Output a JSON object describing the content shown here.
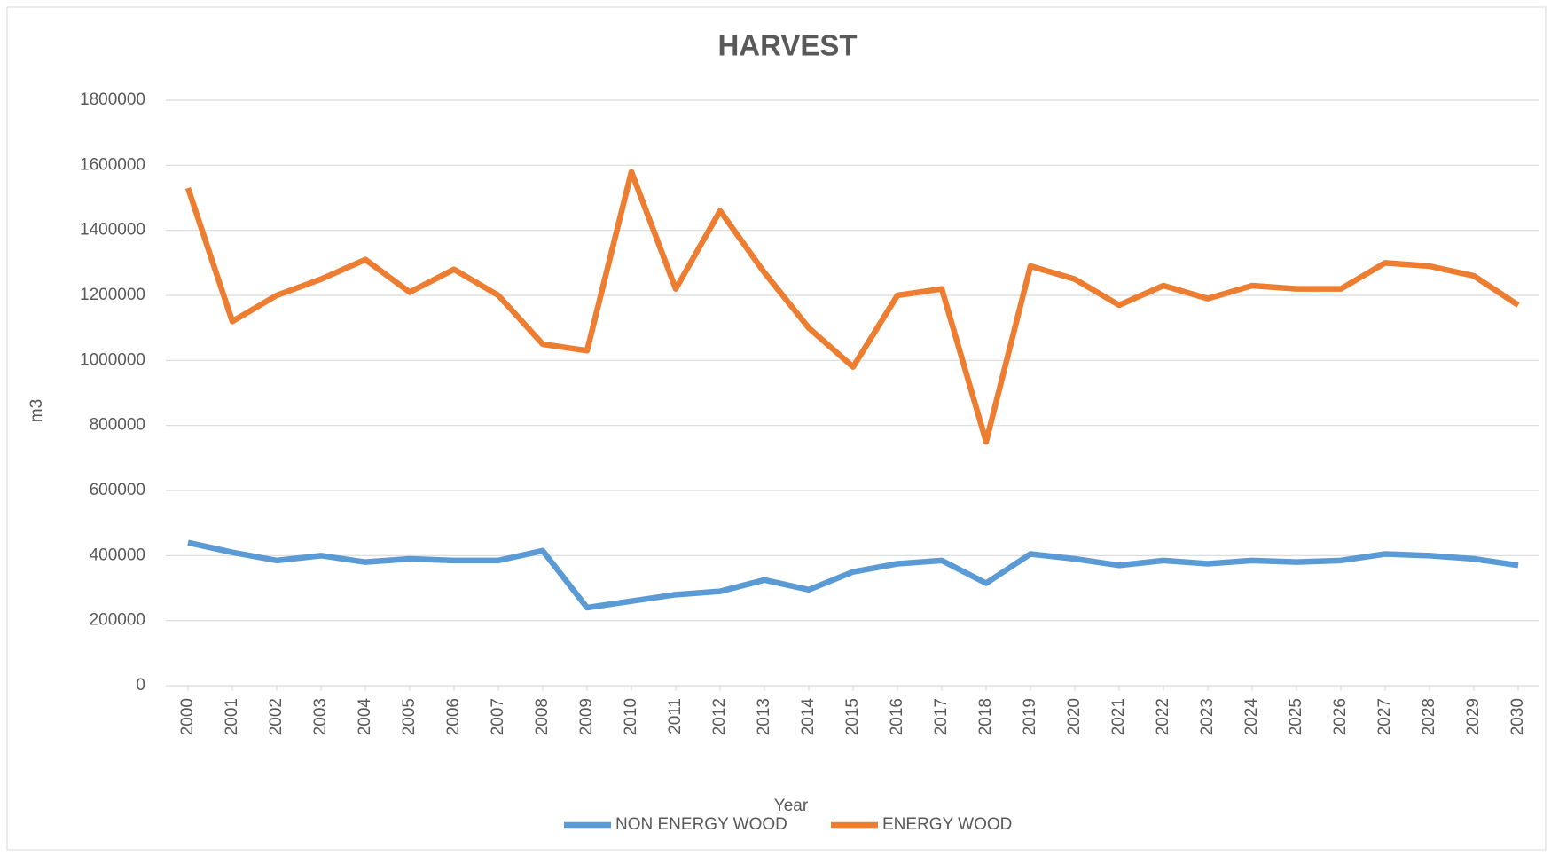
{
  "chart_data": {
    "type": "line",
    "title": "HARVEST",
    "x_label": "Year",
    "y_label": "m3",
    "categories": [
      "2000",
      "2001",
      "2002",
      "2003",
      "2004",
      "2005",
      "2006",
      "2007",
      "2008",
      "2009",
      "2010",
      "2011",
      "2012",
      "2013",
      "2014",
      "2015",
      "2016",
      "2017",
      "2018",
      "2019",
      "2020",
      "2021",
      "2022",
      "2023",
      "2024",
      "2025",
      "2026",
      "2027",
      "2028",
      "2029",
      "2030"
    ],
    "series": [
      {
        "name": "NON ENERGY WOOD",
        "color": "#5b9bd5",
        "values": [
          440000,
          410000,
          385000,
          400000,
          380000,
          390000,
          385000,
          385000,
          415000,
          240000,
          260000,
          280000,
          290000,
          325000,
          295000,
          350000,
          375000,
          385000,
          315000,
          405000,
          390000,
          370000,
          385000,
          375000,
          385000,
          380000,
          385000,
          405000,
          400000,
          390000,
          370000
        ]
      },
      {
        "name": "ENERGY WOOD",
        "color": "#ed7d31",
        "values": [
          1530000,
          1120000,
          1200000,
          1250000,
          1310000,
          1210000,
          1280000,
          1200000,
          1050000,
          1030000,
          1580000,
          1220000,
          1460000,
          1270000,
          1100000,
          980000,
          1200000,
          1220000,
          750000,
          1290000,
          1250000,
          1170000,
          1230000,
          1190000,
          1230000,
          1220000,
          1220000,
          1300000,
          1290000,
          1260000,
          1170000
        ]
      }
    ],
    "ylim": [
      0,
      1800000
    ],
    "yticks": [
      0,
      200000,
      400000,
      600000,
      800000,
      1000000,
      1200000,
      1400000,
      1600000,
      1800000
    ],
    "grid": true,
    "legend": "bottom"
  }
}
